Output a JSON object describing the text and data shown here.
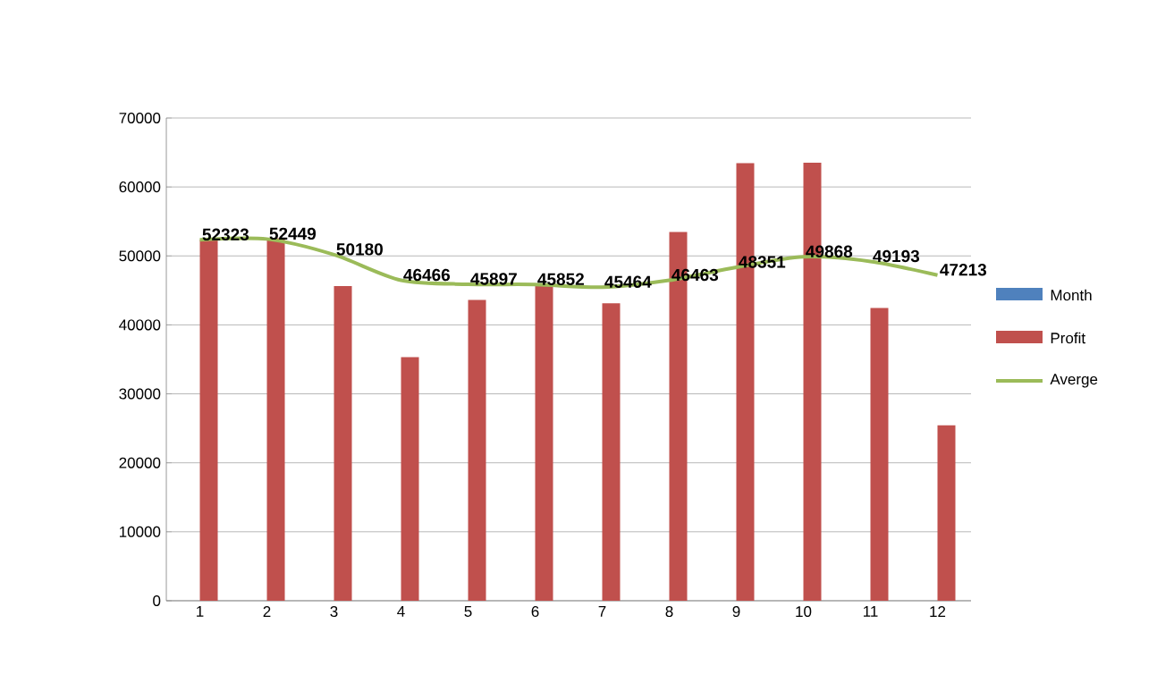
{
  "chart_data": {
    "type": "bar",
    "categories": [
      "1",
      "2",
      "3",
      "4",
      "5",
      "6",
      "7",
      "8",
      "9",
      "10",
      "11",
      "12"
    ],
    "series": [
      {
        "name": "Month",
        "color": "#4f81bd",
        "values": [
          null,
          null,
          null,
          null,
          null,
          null,
          null,
          null,
          null,
          null,
          null,
          null
        ]
      },
      {
        "name": "Profit",
        "color": "#c0504d",
        "values": [
          52323,
          52575,
          45642,
          35324,
          43621,
          45627,
          43136,
          53456,
          63455,
          63521,
          42443,
          25433
        ]
      },
      {
        "name": "Averge",
        "type": "line",
        "color": "#9bbb59",
        "values": [
          52323,
          52449,
          50180,
          46466,
          45897,
          45852,
          45464,
          46463,
          48351,
          49868,
          49193,
          47213
        ],
        "value_labels": [
          "52323",
          "52449",
          "50180",
          "46466",
          "45897",
          "45852",
          "45464",
          "46463",
          "48351",
          "49868",
          "49193",
          "47213"
        ]
      }
    ],
    "ylim": [
      0,
      70000
    ],
    "yticks": [
      0,
      10000,
      20000,
      30000,
      40000,
      50000,
      60000,
      70000
    ],
    "grid": "y",
    "legend": "right"
  }
}
